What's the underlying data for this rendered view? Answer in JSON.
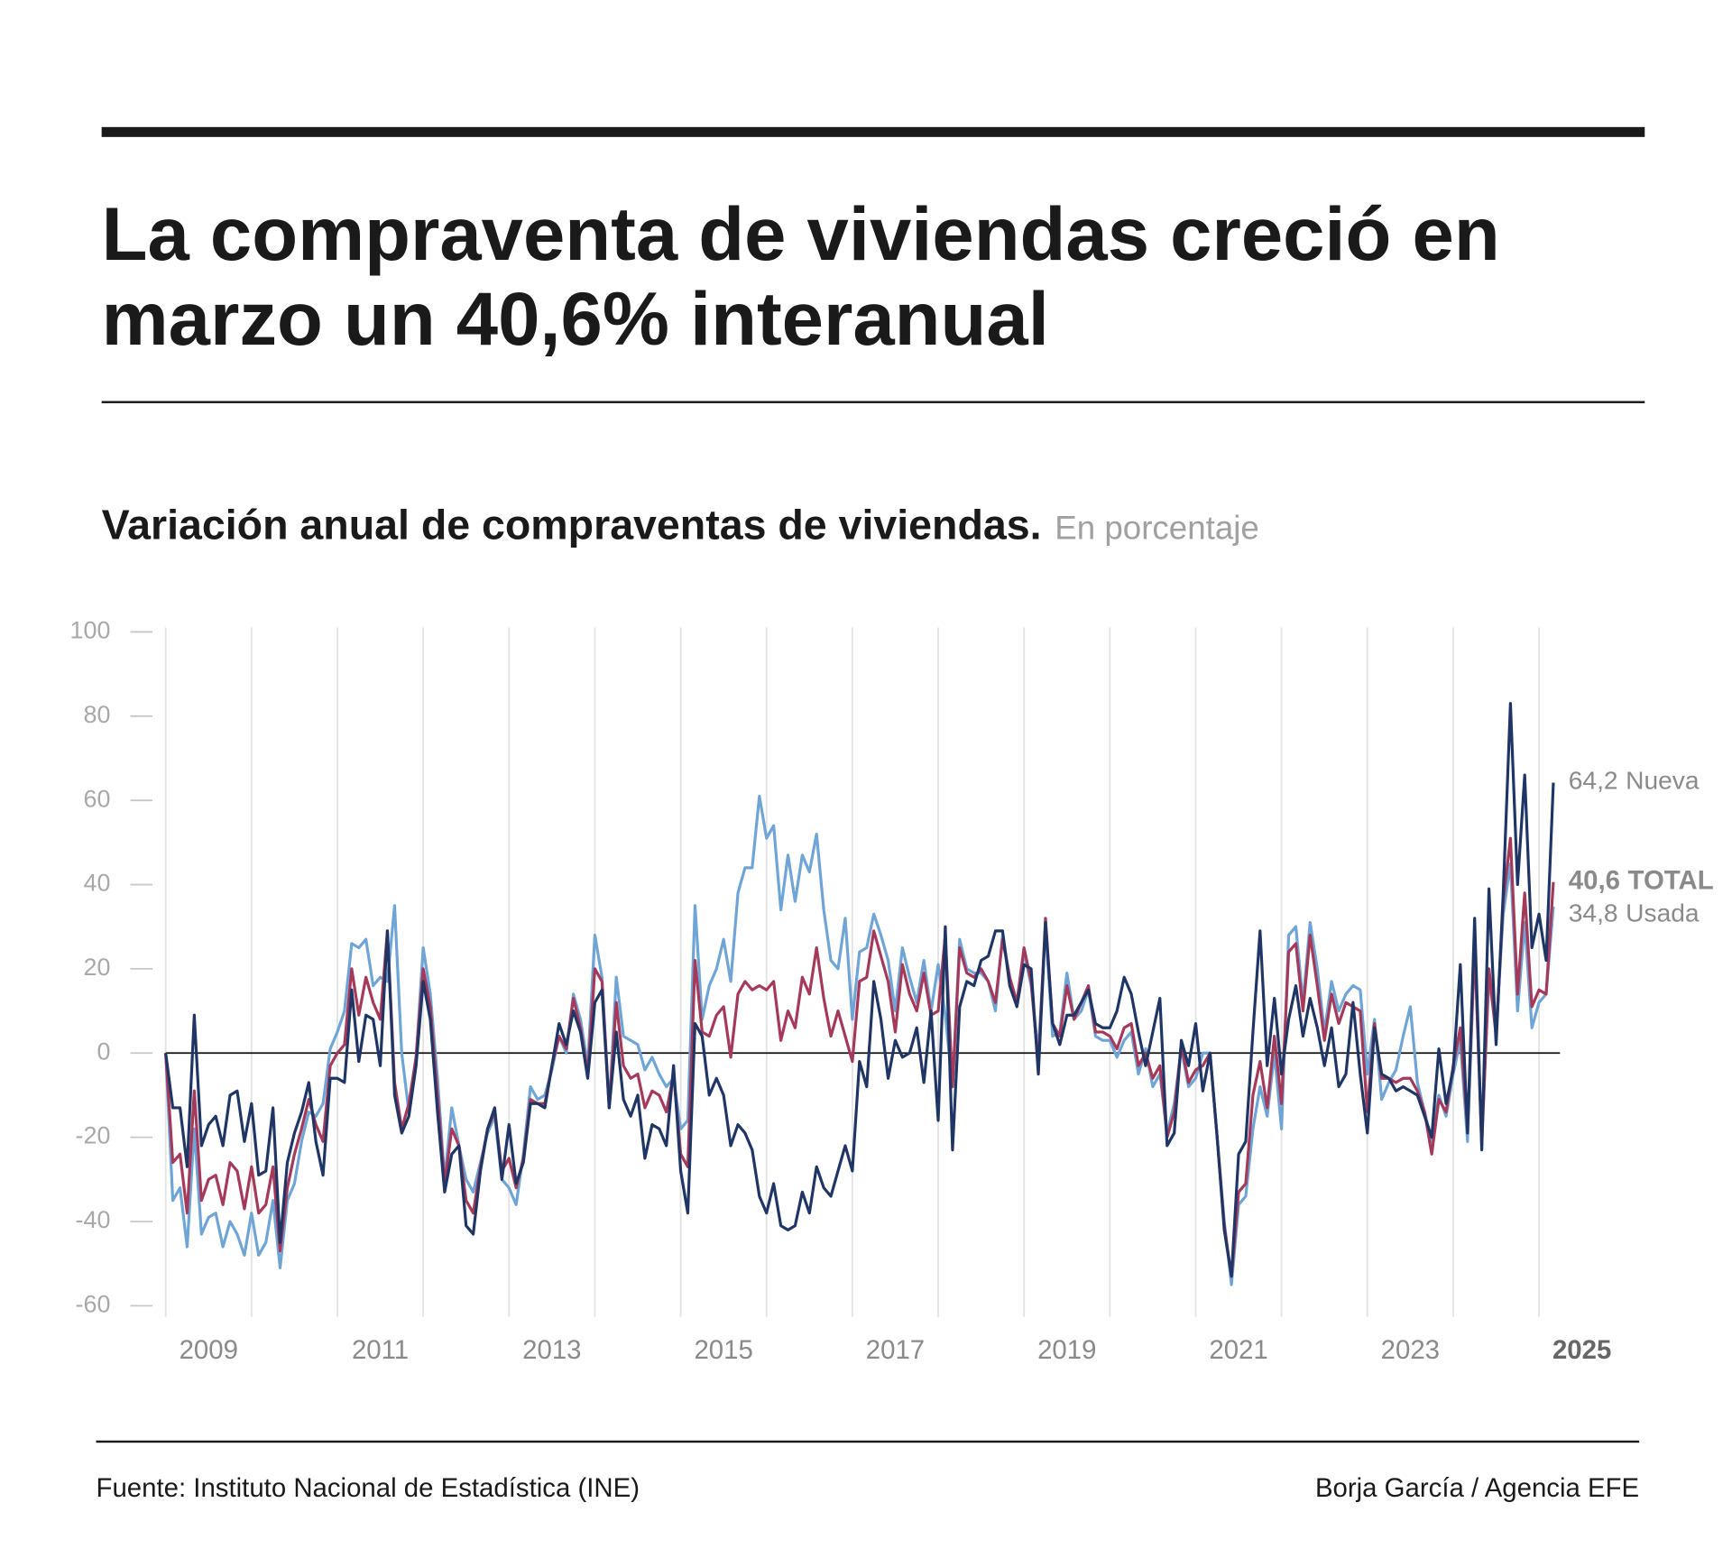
{
  "chart_data": {
    "type": "line",
    "title": [
      "La compraventa de viviendas creció en",
      "marzo un 40,6% interanual"
    ],
    "subtitle": "Variación anual de compraventas de viviendas.",
    "unit": "En porcentaje",
    "source": "Fuente: Instituto Nacional de Estadística (INE)",
    "credit": "Borja García / Agencia EFE",
    "xlim": [
      2009,
      2026
    ],
    "ylim": [
      -60,
      100
    ],
    "yticks": [
      100,
      80,
      60,
      40,
      20,
      0,
      -20,
      -40,
      -60
    ],
    "xgrid": [
      2009,
      2010,
      2011,
      2012,
      2013,
      2014,
      2015,
      2016,
      2017,
      2018,
      2019,
      2020,
      2021,
      2022,
      2023,
      2024,
      2025
    ],
    "xticks": [
      {
        "value": 2009.5,
        "label": "2009"
      },
      {
        "value": 2011.5,
        "label": "2011"
      },
      {
        "value": 2013.5,
        "label": "2013"
      },
      {
        "value": 2015.5,
        "label": "2015"
      },
      {
        "value": 2017.5,
        "label": "2017"
      },
      {
        "value": 2019.5,
        "label": "2019"
      },
      {
        "value": 2021.5,
        "label": "2021"
      },
      {
        "value": 2023.5,
        "label": "2023"
      },
      {
        "value": 2025.5,
        "label": "2025"
      }
    ],
    "grid": true,
    "x": [
      2009,
      2009.083,
      2009.167,
      2009.25,
      2009.333,
      2009.417,
      2009.5,
      2009.583,
      2009.667,
      2009.75,
      2009.833,
      2009.917,
      2010,
      2010.083,
      2010.167,
      2010.25,
      2010.333,
      2010.417,
      2010.5,
      2010.583,
      2010.667,
      2010.75,
      2010.833,
      2010.917,
      2011,
      2011.083,
      2011.167,
      2011.25,
      2011.333,
      2011.417,
      2011.5,
      2011.583,
      2011.667,
      2011.75,
      2011.833,
      2011.917,
      2012,
      2012.083,
      2012.167,
      2012.25,
      2012.333,
      2012.417,
      2012.5,
      2012.583,
      2012.667,
      2012.75,
      2012.833,
      2012.917,
      2013,
      2013.083,
      2013.167,
      2013.25,
      2013.333,
      2013.417,
      2013.5,
      2013.583,
      2013.667,
      2013.75,
      2013.833,
      2013.917,
      2014,
      2014.083,
      2014.167,
      2014.25,
      2014.333,
      2014.417,
      2014.5,
      2014.583,
      2014.667,
      2014.75,
      2014.833,
      2014.917,
      2015,
      2015.083,
      2015.167,
      2015.25,
      2015.333,
      2015.417,
      2015.5,
      2015.583,
      2015.667,
      2015.75,
      2015.833,
      2015.917,
      2016,
      2016.083,
      2016.167,
      2016.25,
      2016.333,
      2016.417,
      2016.5,
      2016.583,
      2016.667,
      2016.75,
      2016.833,
      2016.917,
      2017,
      2017.083,
      2017.167,
      2017.25,
      2017.333,
      2017.417,
      2017.5,
      2017.583,
      2017.667,
      2017.75,
      2017.833,
      2017.917,
      2018,
      2018.083,
      2018.167,
      2018.25,
      2018.333,
      2018.417,
      2018.5,
      2018.583,
      2018.667,
      2018.75,
      2018.833,
      2018.917,
      2019,
      2019.083,
      2019.167,
      2019.25,
      2019.333,
      2019.417,
      2019.5,
      2019.583,
      2019.667,
      2019.75,
      2019.833,
      2019.917,
      2020,
      2020.083,
      2020.167,
      2020.25,
      2020.333,
      2020.417,
      2020.5,
      2020.583,
      2020.667,
      2020.75,
      2020.833,
      2020.917,
      2021,
      2021.083,
      2021.167,
      2021.25,
      2021.333,
      2021.417,
      2021.5,
      2021.583,
      2021.667,
      2021.75,
      2021.833,
      2021.917,
      2022,
      2022.083,
      2022.167,
      2022.25,
      2022.333,
      2022.417,
      2022.5,
      2022.583,
      2022.667,
      2022.75,
      2022.833,
      2022.917,
      2023,
      2023.083,
      2023.167,
      2023.25,
      2023.333,
      2023.417,
      2023.5,
      2023.583,
      2023.667,
      2023.75,
      2023.833,
      2023.917,
      2024,
      2024.083,
      2024.167,
      2024.25,
      2024.333,
      2024.417,
      2024.5,
      2024.583,
      2024.667,
      2024.75,
      2024.833,
      2024.917,
      2025,
      2025.083,
      2025.167
    ],
    "series": [
      {
        "name": "Nueva",
        "color": "#1f3566",
        "last_label": "64,2",
        "values": [
          0,
          -13,
          -13,
          -27,
          9,
          -22,
          -17,
          -15,
          -22,
          -10,
          -9,
          -21,
          -12,
          -29,
          -28,
          -13,
          -45,
          -26,
          -19,
          -14,
          -7,
          -21,
          -29,
          -6,
          -6,
          -7,
          15,
          -2,
          9,
          8,
          -3,
          29,
          -10,
          -19,
          -15,
          -3,
          17,
          8,
          -14,
          -33,
          -24,
          -22,
          -41,
          -43,
          -28,
          -18,
          -13,
          -30,
          -17,
          -31,
          -26,
          -12,
          -12,
          -13,
          -3,
          7,
          2,
          10,
          5,
          -6,
          12,
          15,
          -13,
          5,
          -11,
          -15,
          -10,
          -25,
          -17,
          -18,
          -22,
          -3,
          -28,
          -38,
          7,
          4,
          -10,
          -6,
          -10,
          -22,
          -17,
          -19,
          -23,
          -34,
          -38,
          -31,
          -41,
          -42,
          -41,
          -33,
          -38,
          -27,
          -32,
          -34,
          -28,
          -22,
          -28,
          -2,
          -8,
          17,
          8,
          -6,
          3,
          -1,
          0,
          6,
          -7,
          10,
          -16,
          30,
          -23,
          11,
          17,
          16,
          22,
          23,
          29,
          29,
          16,
          11,
          21,
          20,
          -5,
          31,
          7,
          2,
          9,
          9,
          12,
          15,
          7,
          6,
          6,
          10,
          18,
          14,
          5,
          -3,
          5,
          13,
          -22,
          -19,
          3,
          -3,
          7,
          -9,
          0,
          -20,
          -42,
          -53,
          -24,
          -21,
          5,
          29,
          -3,
          13,
          -5,
          8,
          16,
          4,
          13,
          6,
          -3,
          6,
          -8,
          -5,
          12,
          -5,
          -19,
          6,
          -5,
          -6,
          -9,
          -8,
          -9,
          -10,
          -15,
          -20,
          1,
          -12,
          -4,
          21,
          -19,
          32,
          -23,
          39,
          2,
          38,
          83,
          40,
          66,
          25,
          33,
          22,
          64.2
        ]
      },
      {
        "name": "TOTAL",
        "color": "#a5395a",
        "last_label": "40,6",
        "values": [
          0,
          -26,
          -24,
          -38,
          -9,
          -35,
          -30,
          -29,
          -36,
          -26,
          -28,
          -37,
          -27,
          -38,
          -36,
          -27,
          -47,
          -32,
          -24,
          -18,
          -11,
          -17,
          -21,
          -3,
          0,
          2,
          20,
          9,
          18,
          12,
          8,
          29,
          -7,
          -18,
          -12,
          -1,
          20,
          11,
          -10,
          -31,
          -18,
          -22,
          -35,
          -38,
          -27,
          -18,
          -14,
          -28,
          -25,
          -32,
          -25,
          -11,
          -12,
          -12,
          -3,
          4,
          1,
          13,
          6,
          -5,
          20,
          17,
          -13,
          12,
          -3,
          -6,
          -5,
          -13,
          -9,
          -10,
          -14,
          -5,
          -24,
          -27,
          22,
          5,
          4,
          9,
          11,
          -1,
          14,
          17,
          15,
          16,
          15,
          17,
          3,
          10,
          6,
          18,
          14,
          25,
          13,
          4,
          10,
          4,
          -2,
          17,
          18,
          29,
          23,
          17,
          5,
          21,
          14,
          10,
          19,
          9,
          10,
          28,
          -8,
          25,
          19,
          18,
          20,
          17,
          12,
          27,
          18,
          12,
          25,
          17,
          -3,
          32,
          7,
          4,
          16,
          8,
          12,
          16,
          5,
          5,
          4,
          1,
          6,
          7,
          -3,
          0,
          -6,
          -3,
          -20,
          -14,
          2,
          -7,
          -4,
          -3,
          0,
          -20,
          -41,
          -53,
          -33,
          -31,
          -10,
          -2,
          -13,
          4,
          -12,
          24,
          26,
          10,
          28,
          16,
          3,
          14,
          7,
          12,
          11,
          10,
          -14,
          7,
          -6,
          -6,
          -7,
          -6,
          -6,
          -9,
          -14,
          -24,
          -11,
          -14,
          -3,
          6,
          -18,
          26,
          -22,
          20,
          4,
          36,
          51,
          14,
          38,
          11,
          15,
          14,
          40.6
        ]
      },
      {
        "name": "Usada",
        "color": "#6fa5d6",
        "last_label": "34,8",
        "values": [
          0,
          -35,
          -32,
          -46,
          -18,
          -43,
          -39,
          -38,
          -46,
          -40,
          -43,
          -48,
          -38,
          -48,
          -45,
          -35,
          -51,
          -35,
          -31,
          -21,
          -14,
          -15,
          -12,
          1,
          5,
          10,
          26,
          25,
          27,
          16,
          18,
          17,
          35,
          0,
          -14,
          -1,
          25,
          14,
          -6,
          -30,
          -13,
          -22,
          -30,
          -33,
          -26,
          -19,
          -15,
          -30,
          -32,
          -36,
          -24,
          -8,
          -11,
          -10,
          -4,
          4,
          0,
          14,
          8,
          -3,
          28,
          18,
          -13,
          18,
          4,
          3,
          2,
          -4,
          -1,
          -5,
          -8,
          -6,
          -18,
          -16,
          35,
          8,
          16,
          20,
          27,
          17,
          38,
          44,
          44,
          61,
          51,
          54,
          34,
          47,
          36,
          47,
          43,
          52,
          34,
          22,
          20,
          32,
          8,
          24,
          25,
          33,
          28,
          22,
          10,
          25,
          18,
          12,
          22,
          10,
          21,
          9,
          -8,
          27,
          20,
          19,
          19,
          17,
          10,
          28,
          18,
          12,
          24,
          16,
          0,
          30,
          4,
          5,
          19,
          8,
          10,
          15,
          4,
          3,
          3,
          -1,
          3,
          5,
          -5,
          1,
          -8,
          -5,
          -19,
          -12,
          1,
          -8,
          -6,
          0,
          0,
          -20,
          -40,
          -55,
          -36,
          -34,
          -18,
          -8,
          -15,
          0,
          -18,
          28,
          30,
          12,
          31,
          20,
          5,
          17,
          10,
          14,
          16,
          15,
          -5,
          8,
          -11,
          -7,
          -4,
          4,
          11,
          -7,
          -14,
          -21,
          -10,
          -15,
          -5,
          3,
          -21,
          25,
          -20,
          18,
          5,
          33,
          45,
          10,
          31,
          6,
          12,
          14,
          34.8
        ]
      }
    ]
  }
}
